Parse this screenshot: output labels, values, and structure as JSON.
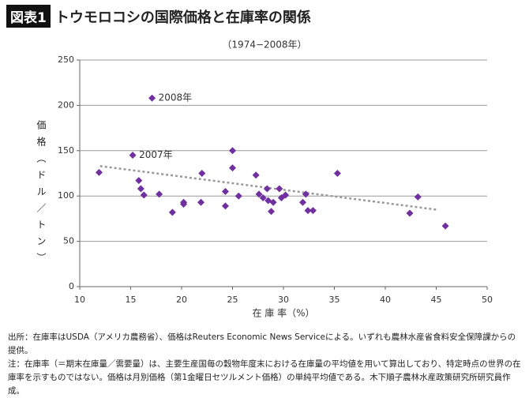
{
  "chart_data": {
    "type": "scatter",
    "tag": "図表1",
    "title": "トウモロコシの国際価格と在庫率の関係",
    "subtitle": "（1974−2008年）",
    "ylabel": "価格（ドル／トン）",
    "xlabel": "在 庫 率（%）",
    "x": [
      11.9,
      15.2,
      17.1,
      15.8,
      16.0,
      16.3,
      17.8,
      19.1,
      20.2,
      20.2,
      21.9,
      22.0,
      24.3,
      24.3,
      25.0,
      25.0,
      25.6,
      27.3,
      27.6,
      28.0,
      28.4,
      28.5,
      28.8,
      29.0,
      29.6,
      29.8,
      30.2,
      31.9,
      32.2,
      32.4,
      32.9,
      35.3,
      42.4,
      43.2,
      45.9
    ],
    "values": [
      126,
      145,
      208,
      117,
      108,
      101,
      102,
      82,
      93,
      91,
      93,
      125,
      105,
      89,
      150,
      131,
      100,
      123,
      102,
      98,
      108,
      95,
      83,
      93,
      108,
      98,
      101,
      93,
      102,
      84,
      84,
      125,
      81,
      99,
      67
    ],
    "color": "#7030a0",
    "trendline": {
      "x": [
        12,
        45
      ],
      "values": [
        133,
        85
      ],
      "color": "#999999"
    },
    "annotations": [
      "2008年",
      "2007年"
    ],
    "xlim": [
      10,
      50
    ],
    "xticks": [
      10,
      15,
      20,
      25,
      30,
      35,
      40,
      45,
      50
    ],
    "ylim": [
      0,
      250
    ],
    "yticks": [
      0,
      50,
      100,
      150,
      200,
      250
    ],
    "grid": true,
    "source": "出所：在庫率はUSDA（アメリカ農務省）、価格はReuters Economic News Serviceによる。いずれも農林水産省食料安全保障課からの提供。",
    "note": "注：在庫率（＝期末在庫量／需要量）は、主要生産国毎の穀物年度末における在庫量の平均値を用いて算出しており、特定時点の世界の在庫率を示すものではない。価格は月別価格（第1金曜日セツルメント価格）の単純平均値である。木下順子農林水産政策研究所研究員作成。"
  }
}
